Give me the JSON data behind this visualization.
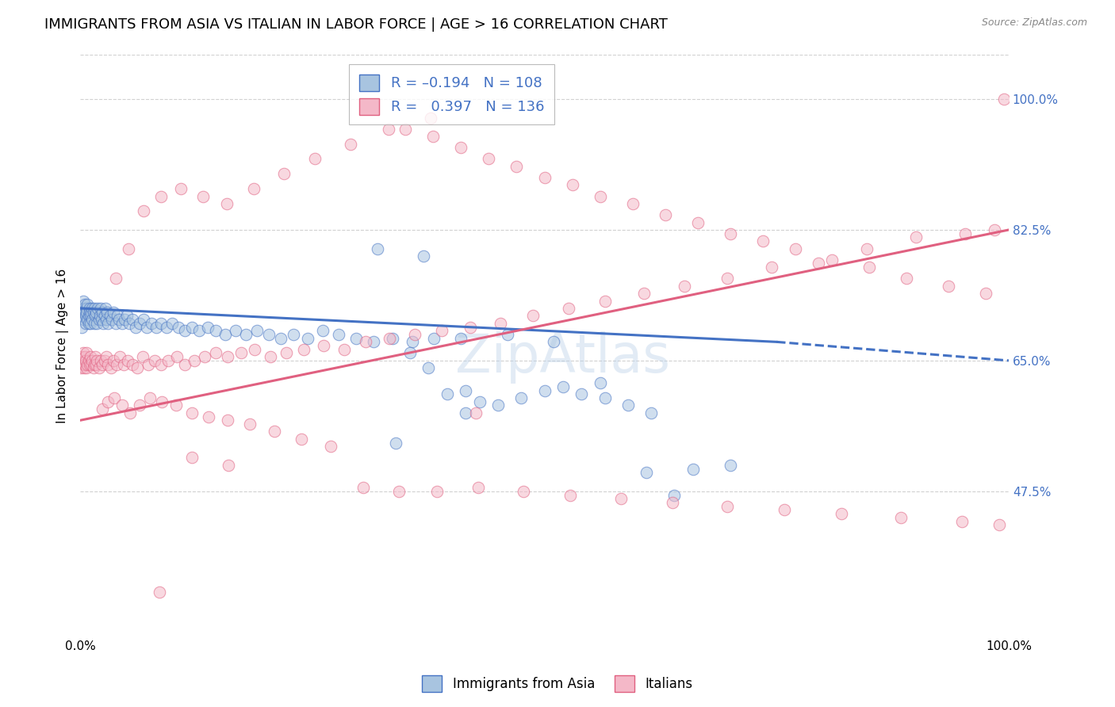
{
  "title": "IMMIGRANTS FROM ASIA VS ITALIAN IN LABOR FORCE | AGE > 16 CORRELATION CHART",
  "source": "Source: ZipAtlas.com",
  "ylabel": "In Labor Force | Age > 16",
  "xlim": [
    0.0,
    1.0
  ],
  "ylim": [
    0.28,
    1.06
  ],
  "yticks": [
    0.475,
    0.65,
    0.825,
    1.0
  ],
  "ytick_labels": [
    "47.5%",
    "65.0%",
    "82.5%",
    "100.0%"
  ],
  "blue_trend_x": [
    0.0,
    0.75,
    1.0
  ],
  "blue_trend_y": [
    0.72,
    0.675,
    0.65
  ],
  "blue_trend_solid_end": 0.75,
  "pink_trend_x": [
    0.0,
    1.0
  ],
  "pink_trend_y": [
    0.57,
    0.825
  ],
  "blue_color": "#a8c4e0",
  "blue_edge_color": "#4472c4",
  "pink_color": "#f4b8c8",
  "pink_edge_color": "#e06080",
  "background_color": "#ffffff",
  "grid_color": "#cccccc",
  "scatter_size": 110,
  "scatter_alpha": 0.55,
  "title_fontsize": 13,
  "axis_label_fontsize": 11,
  "blue_scatter_x": [
    0.001,
    0.002,
    0.002,
    0.003,
    0.003,
    0.004,
    0.004,
    0.005,
    0.005,
    0.006,
    0.006,
    0.007,
    0.007,
    0.008,
    0.008,
    0.009,
    0.009,
    0.01,
    0.01,
    0.011,
    0.011,
    0.012,
    0.013,
    0.013,
    0.014,
    0.015,
    0.015,
    0.016,
    0.017,
    0.018,
    0.019,
    0.02,
    0.021,
    0.022,
    0.023,
    0.024,
    0.025,
    0.026,
    0.027,
    0.028,
    0.029,
    0.03,
    0.032,
    0.034,
    0.036,
    0.038,
    0.04,
    0.042,
    0.045,
    0.048,
    0.05,
    0.053,
    0.056,
    0.06,
    0.064,
    0.068,
    0.072,
    0.077,
    0.082,
    0.087,
    0.093,
    0.099,
    0.106,
    0.113,
    0.12,
    0.128,
    0.137,
    0.146,
    0.156,
    0.167,
    0.178,
    0.19,
    0.203,
    0.216,
    0.23,
    0.245,
    0.261,
    0.278,
    0.297,
    0.316,
    0.336,
    0.358,
    0.381,
    0.32,
    0.37,
    0.41,
    0.46,
    0.51,
    0.56,
    0.61,
    0.66,
    0.7,
    0.355,
    0.375,
    0.395,
    0.415,
    0.34,
    0.415,
    0.43,
    0.45,
    0.475,
    0.5,
    0.52,
    0.54,
    0.565,
    0.59,
    0.615,
    0.64
  ],
  "blue_scatter_y": [
    0.72,
    0.71,
    0.695,
    0.73,
    0.715,
    0.72,
    0.705,
    0.715,
    0.725,
    0.71,
    0.7,
    0.72,
    0.715,
    0.705,
    0.725,
    0.71,
    0.7,
    0.72,
    0.715,
    0.71,
    0.7,
    0.715,
    0.72,
    0.705,
    0.715,
    0.7,
    0.72,
    0.71,
    0.715,
    0.7,
    0.72,
    0.705,
    0.71,
    0.72,
    0.705,
    0.715,
    0.7,
    0.71,
    0.72,
    0.705,
    0.715,
    0.7,
    0.71,
    0.705,
    0.715,
    0.7,
    0.71,
    0.705,
    0.7,
    0.705,
    0.71,
    0.7,
    0.705,
    0.695,
    0.7,
    0.705,
    0.695,
    0.7,
    0.695,
    0.7,
    0.695,
    0.7,
    0.695,
    0.69,
    0.695,
    0.69,
    0.695,
    0.69,
    0.685,
    0.69,
    0.685,
    0.69,
    0.685,
    0.68,
    0.685,
    0.68,
    0.69,
    0.685,
    0.68,
    0.675,
    0.68,
    0.675,
    0.68,
    0.8,
    0.79,
    0.68,
    0.685,
    0.675,
    0.62,
    0.5,
    0.505,
    0.51,
    0.66,
    0.64,
    0.605,
    0.61,
    0.54,
    0.58,
    0.595,
    0.59,
    0.6,
    0.61,
    0.615,
    0.605,
    0.6,
    0.59,
    0.58,
    0.47
  ],
  "pink_scatter_x": [
    0.001,
    0.002,
    0.003,
    0.003,
    0.004,
    0.004,
    0.005,
    0.005,
    0.006,
    0.007,
    0.007,
    0.008,
    0.009,
    0.01,
    0.011,
    0.012,
    0.013,
    0.014,
    0.015,
    0.016,
    0.017,
    0.018,
    0.02,
    0.022,
    0.024,
    0.026,
    0.028,
    0.03,
    0.033,
    0.036,
    0.039,
    0.043,
    0.047,
    0.051,
    0.056,
    0.061,
    0.067,
    0.073,
    0.08,
    0.087,
    0.095,
    0.104,
    0.113,
    0.123,
    0.134,
    0.146,
    0.159,
    0.173,
    0.188,
    0.205,
    0.222,
    0.241,
    0.262,
    0.284,
    0.307,
    0.333,
    0.36,
    0.389,
    0.42,
    0.453,
    0.488,
    0.526,
    0.565,
    0.607,
    0.651,
    0.697,
    0.745,
    0.795,
    0.847,
    0.9,
    0.953,
    0.985,
    0.995,
    0.35,
    0.38,
    0.41,
    0.44,
    0.47,
    0.5,
    0.53,
    0.56,
    0.595,
    0.63,
    0.665,
    0.7,
    0.735,
    0.77,
    0.81,
    0.85,
    0.89,
    0.935,
    0.975,
    0.038,
    0.052,
    0.068,
    0.087,
    0.108,
    0.132,
    0.158,
    0.187,
    0.219,
    0.253,
    0.291,
    0.332,
    0.377,
    0.426,
    0.024,
    0.03,
    0.037,
    0.045,
    0.054,
    0.064,
    0.075,
    0.088,
    0.103,
    0.12,
    0.138,
    0.159,
    0.183,
    0.209,
    0.238,
    0.27,
    0.305,
    0.343,
    0.384,
    0.429,
    0.477,
    0.528,
    0.582,
    0.638,
    0.697,
    0.758,
    0.82,
    0.884,
    0.95,
    0.99,
    0.085,
    0.12,
    0.16
  ],
  "pink_scatter_y": [
    0.64,
    0.655,
    0.645,
    0.66,
    0.65,
    0.64,
    0.655,
    0.645,
    0.65,
    0.64,
    0.66,
    0.645,
    0.65,
    0.645,
    0.655,
    0.645,
    0.65,
    0.64,
    0.645,
    0.655,
    0.645,
    0.65,
    0.64,
    0.65,
    0.645,
    0.65,
    0.655,
    0.645,
    0.64,
    0.65,
    0.645,
    0.655,
    0.645,
    0.65,
    0.645,
    0.64,
    0.655,
    0.645,
    0.65,
    0.645,
    0.65,
    0.655,
    0.645,
    0.65,
    0.655,
    0.66,
    0.655,
    0.66,
    0.665,
    0.655,
    0.66,
    0.665,
    0.67,
    0.665,
    0.675,
    0.68,
    0.685,
    0.69,
    0.695,
    0.7,
    0.71,
    0.72,
    0.73,
    0.74,
    0.75,
    0.76,
    0.775,
    0.78,
    0.8,
    0.815,
    0.82,
    0.825,
    1.0,
    0.96,
    0.95,
    0.935,
    0.92,
    0.91,
    0.895,
    0.885,
    0.87,
    0.86,
    0.845,
    0.835,
    0.82,
    0.81,
    0.8,
    0.785,
    0.775,
    0.76,
    0.75,
    0.74,
    0.76,
    0.8,
    0.85,
    0.87,
    0.88,
    0.87,
    0.86,
    0.88,
    0.9,
    0.92,
    0.94,
    0.96,
    0.975,
    0.58,
    0.585,
    0.595,
    0.6,
    0.59,
    0.58,
    0.59,
    0.6,
    0.595,
    0.59,
    0.58,
    0.575,
    0.57,
    0.565,
    0.555,
    0.545,
    0.535,
    0.48,
    0.475,
    0.475,
    0.48,
    0.475,
    0.47,
    0.465,
    0.46,
    0.455,
    0.45,
    0.445,
    0.44,
    0.435,
    0.43,
    0.34,
    0.52,
    0.51
  ]
}
